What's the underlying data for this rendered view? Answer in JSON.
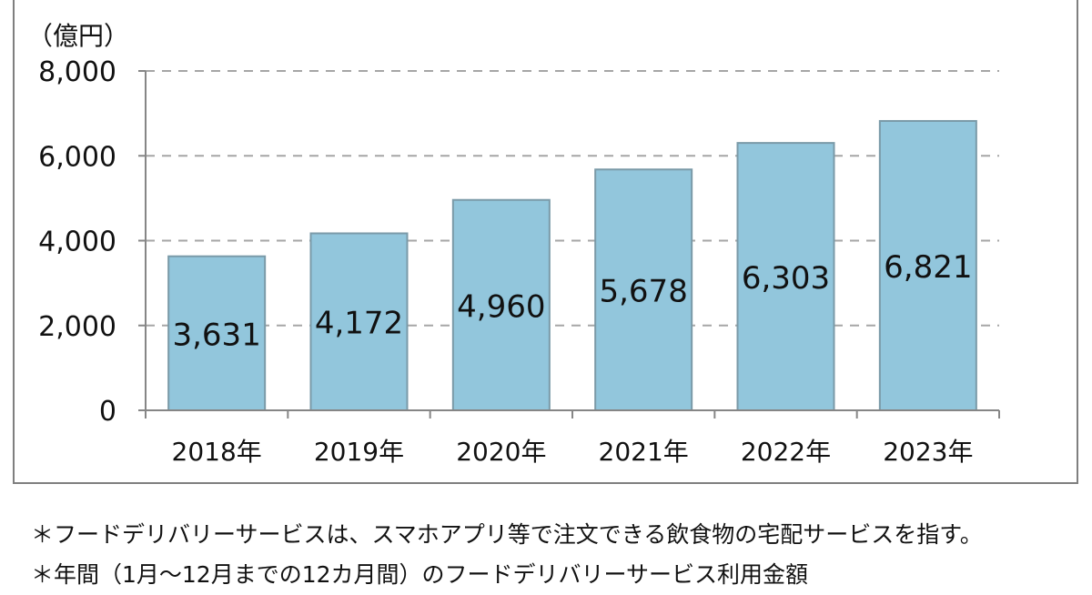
{
  "chart_data": {
    "type": "bar",
    "unit_label": "（億円）",
    "categories": [
      "2018年",
      "2019年",
      "2020年",
      "2021年",
      "2022年",
      "2023年"
    ],
    "values": [
      3631,
      4172,
      4960,
      5678,
      6303,
      6821
    ],
    "value_labels": [
      "3,631",
      "4,172",
      "4,960",
      "5,678",
      "6,303",
      "6,821"
    ],
    "ylim": [
      0,
      8000
    ],
    "yticks": [
      0,
      2000,
      4000,
      6000,
      8000
    ],
    "ytick_labels": [
      "0",
      "2,000",
      "4,000",
      "6,000",
      "8,000"
    ],
    "grid": true,
    "bar_color": "#92c6dc",
    "bar_border_color": "#7a9aa8",
    "grid_color": "#a6a6a6",
    "axis_color": "#868686"
  },
  "notes": [
    "＊フードデリバリーサービスは、スマホアプリ等で注文できる飲食物の宅配サービスを指す。",
    "＊年間（1月～12月までの12カ月間）のフードデリバリーサービス利用金額"
  ]
}
